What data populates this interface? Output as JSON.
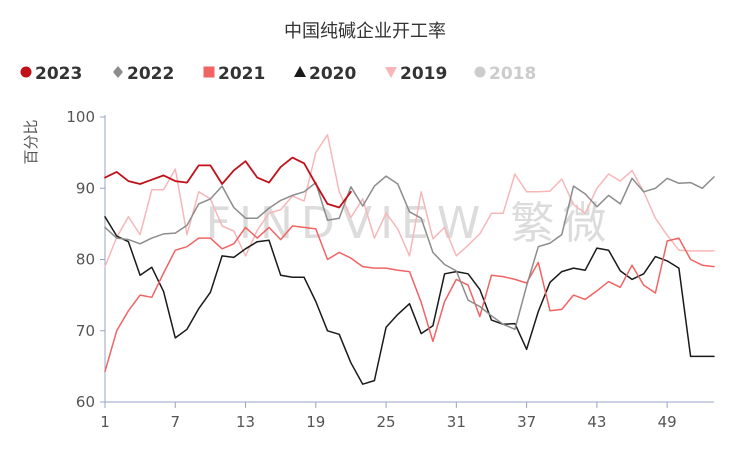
{
  "chart_data": {
    "type": "line",
    "title": "中国纯碱企业开工率",
    "ylabel": "百分比",
    "xlabel": "",
    "watermark": "FINDVIEW 繁微",
    "ylim": [
      60,
      100
    ],
    "xlim": [
      1,
      53
    ],
    "yticks": [
      60,
      70,
      80,
      90,
      100
    ],
    "xticks": [
      1,
      7,
      13,
      19,
      25,
      31,
      37,
      43,
      49
    ],
    "grid": false,
    "legend_position": "top-left",
    "series": [
      {
        "name": "2023",
        "color": "#c0111a",
        "marker": "circle",
        "x": [
          1,
          2,
          3,
          4,
          5,
          6,
          7,
          8,
          9,
          10,
          11,
          12,
          13,
          14,
          15,
          16,
          17,
          18,
          19,
          20,
          21,
          22
        ],
        "values": [
          91.5,
          92.3,
          91.0,
          90.6,
          91.2,
          91.8,
          91.0,
          90.8,
          93.2,
          93.2,
          90.6,
          92.5,
          93.8,
          91.5,
          90.8,
          93.0,
          94.3,
          93.5,
          90.6,
          87.8,
          87.3,
          89.5
        ]
      },
      {
        "name": "2022",
        "color": "#8c8c8c",
        "marker": "diamond",
        "x": [
          1,
          2,
          3,
          4,
          5,
          6,
          7,
          8,
          9,
          10,
          11,
          12,
          13,
          14,
          15,
          16,
          17,
          18,
          19,
          20,
          21,
          22,
          23,
          24,
          25,
          26,
          27,
          28,
          29,
          30,
          31,
          32,
          33,
          34,
          35,
          36,
          37,
          38,
          39,
          40,
          41,
          42,
          43,
          44,
          45,
          46,
          47,
          48,
          49,
          50,
          51,
          52,
          53
        ],
        "values": [
          84.5,
          83.0,
          82.8,
          82.2,
          83.0,
          83.6,
          83.7,
          84.8,
          87.8,
          88.5,
          90.3,
          87.3,
          85.8,
          85.8,
          87.2,
          88.3,
          89.0,
          89.5,
          90.8,
          85.5,
          85.8,
          90.2,
          87.5,
          90.3,
          91.7,
          90.6,
          86.7,
          85.8,
          81.0,
          79.3,
          78.4,
          74.3,
          73.4,
          72.1,
          70.9,
          70.2,
          76.3,
          81.8,
          82.3,
          83.5,
          90.3,
          89.2,
          87.4,
          89.0,
          87.8,
          91.4,
          89.5,
          90.0,
          91.4,
          90.7,
          90.8,
          90.0,
          91.6
        ]
      },
      {
        "name": "2021",
        "color": "#f06463",
        "marker": "square",
        "x": [
          1,
          2,
          3,
          4,
          5,
          6,
          7,
          8,
          9,
          10,
          11,
          12,
          13,
          14,
          15,
          16,
          17,
          18,
          19,
          20,
          21,
          22,
          23,
          24,
          25,
          26,
          27,
          28,
          29,
          30,
          31,
          32,
          33,
          34,
          35,
          36,
          37,
          38,
          39,
          40,
          41,
          42,
          43,
          44,
          45,
          46,
          47,
          48,
          49,
          50,
          51,
          52,
          53
        ],
        "values": [
          64.3,
          70.0,
          72.8,
          75.0,
          74.7,
          78.1,
          81.3,
          81.8,
          83.0,
          83.0,
          81.5,
          82.2,
          84.5,
          83.0,
          84.5,
          82.8,
          84.7,
          84.5,
          84.3,
          80.0,
          81.0,
          80.2,
          79.0,
          78.8,
          78.8,
          78.5,
          78.3,
          74.0,
          68.5,
          74.1,
          77.2,
          76.4,
          72.0,
          77.8,
          77.6,
          77.2,
          76.7,
          79.6,
          72.8,
          73.0,
          75.0,
          74.4,
          75.6,
          76.9,
          76.1,
          79.2,
          76.4,
          75.3,
          82.6,
          83.0,
          80.0,
          79.2,
          79.0
        ]
      },
      {
        "name": "2020",
        "color": "#1a1a1a",
        "marker": "triangle",
        "x": [
          1,
          2,
          3,
          4,
          5,
          6,
          7,
          8,
          9,
          10,
          11,
          12,
          13,
          14,
          15,
          16,
          17,
          18,
          19,
          20,
          21,
          22,
          23,
          24,
          25,
          26,
          27,
          28,
          29,
          30,
          31,
          32,
          33,
          34,
          35,
          36,
          37,
          38,
          39,
          40,
          41,
          42,
          43,
          44,
          45,
          46,
          47,
          48,
          49,
          50,
          51,
          52,
          53
        ],
        "values": [
          86.0,
          83.3,
          82.5,
          77.8,
          78.9,
          75.5,
          69.0,
          70.2,
          73.1,
          75.4,
          80.5,
          80.3,
          81.5,
          82.5,
          82.7,
          77.8,
          77.5,
          77.5,
          74.1,
          70.0,
          69.5,
          65.5,
          62.5,
          63.0,
          70.5,
          72.3,
          73.8,
          69.6,
          70.7,
          78.0,
          78.3,
          78.0,
          75.8,
          71.5,
          70.9,
          71.0,
          67.4,
          72.7,
          76.8,
          78.3,
          78.8,
          78.5,
          81.6,
          81.3,
          78.4,
          77.2,
          78.0,
          80.4,
          79.8,
          78.8,
          66.4,
          66.4,
          66.4
        ]
      },
      {
        "name": "2019",
        "color": "#f7b7b8",
        "marker": "triangle-down",
        "x": [
          1,
          2,
          3,
          4,
          5,
          6,
          7,
          8,
          9,
          10,
          11,
          12,
          13,
          14,
          15,
          16,
          17,
          18,
          19,
          20,
          21,
          22,
          23,
          24,
          25,
          26,
          27,
          28,
          29,
          30,
          31,
          32,
          33,
          34,
          35,
          36,
          37,
          38,
          39,
          40,
          41,
          42,
          43,
          44,
          45,
          46,
          47,
          48,
          49,
          50,
          51,
          52,
          53
        ],
        "values": [
          79.0,
          83.1,
          86.0,
          83.5,
          89.8,
          89.8,
          92.7,
          83.5,
          89.5,
          88.5,
          84.7,
          84.0,
          80.5,
          84.1,
          86.5,
          87.0,
          88.9,
          88.2,
          95.0,
          97.5,
          89.5,
          85.9,
          88.5,
          83.0,
          86.5,
          84.3,
          80.5,
          89.5,
          82.9,
          84.5,
          80.5,
          82.0,
          83.6,
          86.5,
          86.5,
          92.0,
          89.5,
          89.5,
          89.6,
          91.3,
          87.7,
          86.5,
          90.0,
          92.0,
          91.0,
          92.5,
          89.5,
          85.8,
          83.4,
          81.3,
          81.2,
          81.2,
          81.2
        ]
      },
      {
        "name": "2018",
        "color": "#cccccc",
        "marker": "circle",
        "hidden": true,
        "x": [],
        "values": []
      }
    ]
  }
}
